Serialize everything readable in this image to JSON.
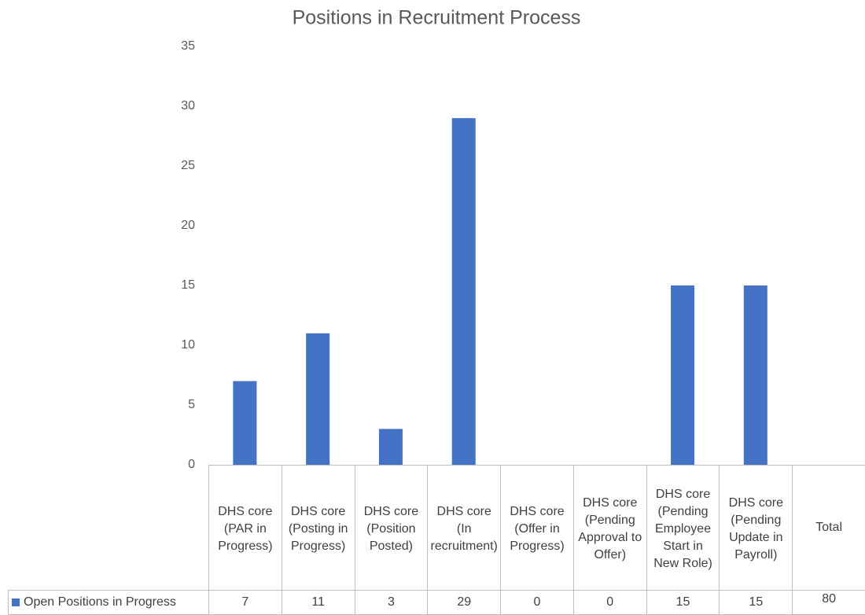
{
  "chart_data": {
    "type": "bar",
    "title": "Positions in Recruitment Process",
    "categories": [
      "DHS core (PAR in Progress)",
      "DHS core (Posting in Progress)",
      "DHS core (Position Posted)",
      "DHS core (In recruitment)",
      "DHS core (Offer in Progress)",
      "DHS core (Pending Approval to Offer)",
      "DHS core (Pending Employee Start in New Role)",
      "DHS core (Pending Update in Payroll)"
    ],
    "series": [
      {
        "name": "Open Positions in Progress",
        "color": "#4472c4",
        "values": [
          7,
          11,
          3,
          29,
          0,
          0,
          15,
          15
        ]
      }
    ],
    "total": {
      "label": "Total",
      "value": 80
    },
    "ylim": [
      0,
      35
    ],
    "yticks": [
      0,
      5,
      10,
      15,
      20,
      25,
      30,
      35
    ],
    "grid": false,
    "data_table": true
  }
}
